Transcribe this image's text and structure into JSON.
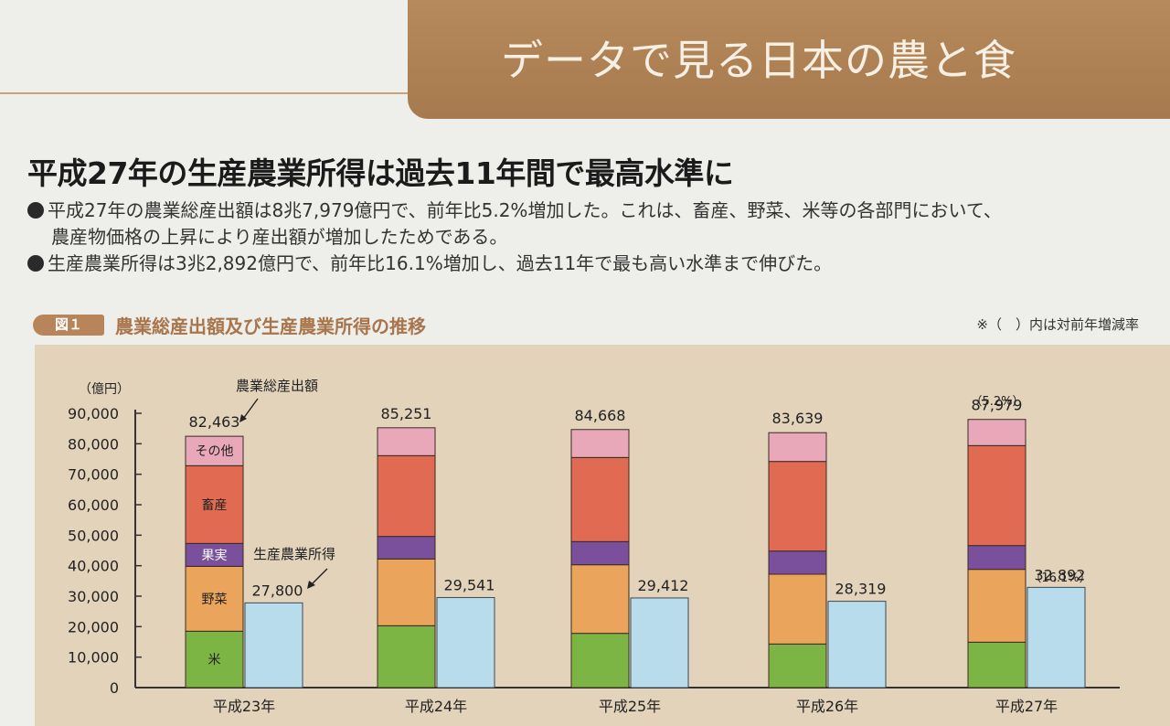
{
  "banner": {
    "title": "データで見る日本の農と食"
  },
  "headline": "平成27年の生産農業所得は過去11年間で最高水準に",
  "bullets": [
    {
      "line1": "平成27年の農業総産出額は8兆7,979億円で、前年比5.2%増加した。これは、畜産、野菜、米等の各部門において、",
      "line2": "農産物価格の上昇により産出額が増加したためである。"
    },
    {
      "line1": "生産農業所得は3兆2,892億円で、前年比16.1%増加し、過去11年で最も高い水準まで伸びた。"
    }
  ],
  "figure": {
    "badge": "図１",
    "title": "農業総産出額及び生産農業所得の推移",
    "note": "※（　）内は対前年増減率"
  },
  "colors": {
    "rice": "#7db544",
    "vegetables": "#eaa45c",
    "fruit": "#7a4f9c",
    "livestock": "#e06a52",
    "other": "#e8a8ba",
    "income": "#b8dceb",
    "axis": "#333333"
  },
  "chart_data": {
    "type": "bar",
    "title": "農業総産出額及び生産農業所得の推移",
    "ylabel": "（億円）",
    "ylim": [
      0,
      90000
    ],
    "yticks": [
      "0",
      "10,000",
      "20,000",
      "30,000",
      "40,000",
      "50,000",
      "60,000",
      "70,000",
      "80,000",
      "90,000"
    ],
    "categories": [
      "平成23年",
      "平成24年",
      "平成25年",
      "平成26年",
      "平成27年"
    ],
    "stacked_series": [
      {
        "name": "米",
        "key": "rice",
        "values": [
          18500,
          20300,
          17800,
          14300,
          14900
        ]
      },
      {
        "name": "野菜",
        "key": "vegetables",
        "values": [
          21300,
          21900,
          22500,
          22900,
          23900
        ]
      },
      {
        "name": "果実",
        "key": "fruit",
        "values": [
          7500,
          7400,
          7600,
          7600,
          7800
        ]
      },
      {
        "name": "畜産",
        "key": "livestock",
        "values": [
          25500,
          26500,
          27600,
          29400,
          32800
        ]
      },
      {
        "name": "その他",
        "key": "other",
        "values": [
          9663,
          9151,
          9168,
          9439,
          8579
        ]
      }
    ],
    "total_series": {
      "name": "農業総産出額",
      "values": [
        82463,
        85251,
        84668,
        83639,
        87979
      ],
      "labels": [
        "82,463",
        "85,251",
        "84,668",
        "83,639",
        "87,979"
      ]
    },
    "income_series": {
      "name": "生産農業所得",
      "values": [
        27800,
        29541,
        29412,
        28319,
        32892
      ],
      "labels": [
        "27,800",
        "29,541",
        "29,412",
        "28,319",
        "32,892"
      ]
    },
    "annotations": {
      "total_change_2015": "（5.2%）",
      "income_change_2015": "（16.1%）"
    },
    "segment_labels": {
      "rice": "米",
      "vegetables": "野菜",
      "fruit": "果実",
      "livestock": "畜産",
      "other": "その他"
    }
  }
}
